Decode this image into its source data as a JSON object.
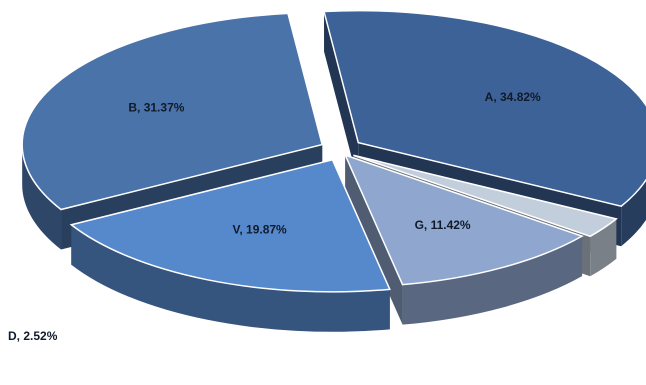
{
  "chart_data": {
    "type": "pie",
    "style": "3d-exploded",
    "title": "",
    "legend": "none",
    "series": [
      {
        "labels": [
          "A",
          "B",
          "V",
          "G",
          "D"
        ],
        "values": [
          34.82,
          31.37,
          19.87,
          11.42,
          2.52
        ],
        "unit": "%"
      }
    ],
    "slices": [
      {
        "key": "A",
        "label": "A",
        "value": 34.82,
        "display": "A, 34.82%",
        "color": "#3d6297"
      },
      {
        "key": "B",
        "label": "B",
        "value": 31.37,
        "display": "B, 31.37%",
        "color": "#4a73aa"
      },
      {
        "key": "V",
        "label": "V",
        "value": 19.87,
        "display": "V, 19.87%",
        "color": "#5689cc"
      },
      {
        "key": "G",
        "label": "G",
        "value": 11.42,
        "display": "G, 11.42%",
        "color": "#8fa7cf"
      },
      {
        "key": "D",
        "label": "D",
        "value": 2.52,
        "display": "D, 2.52%",
        "color": "#c3cedc"
      }
    ]
  }
}
